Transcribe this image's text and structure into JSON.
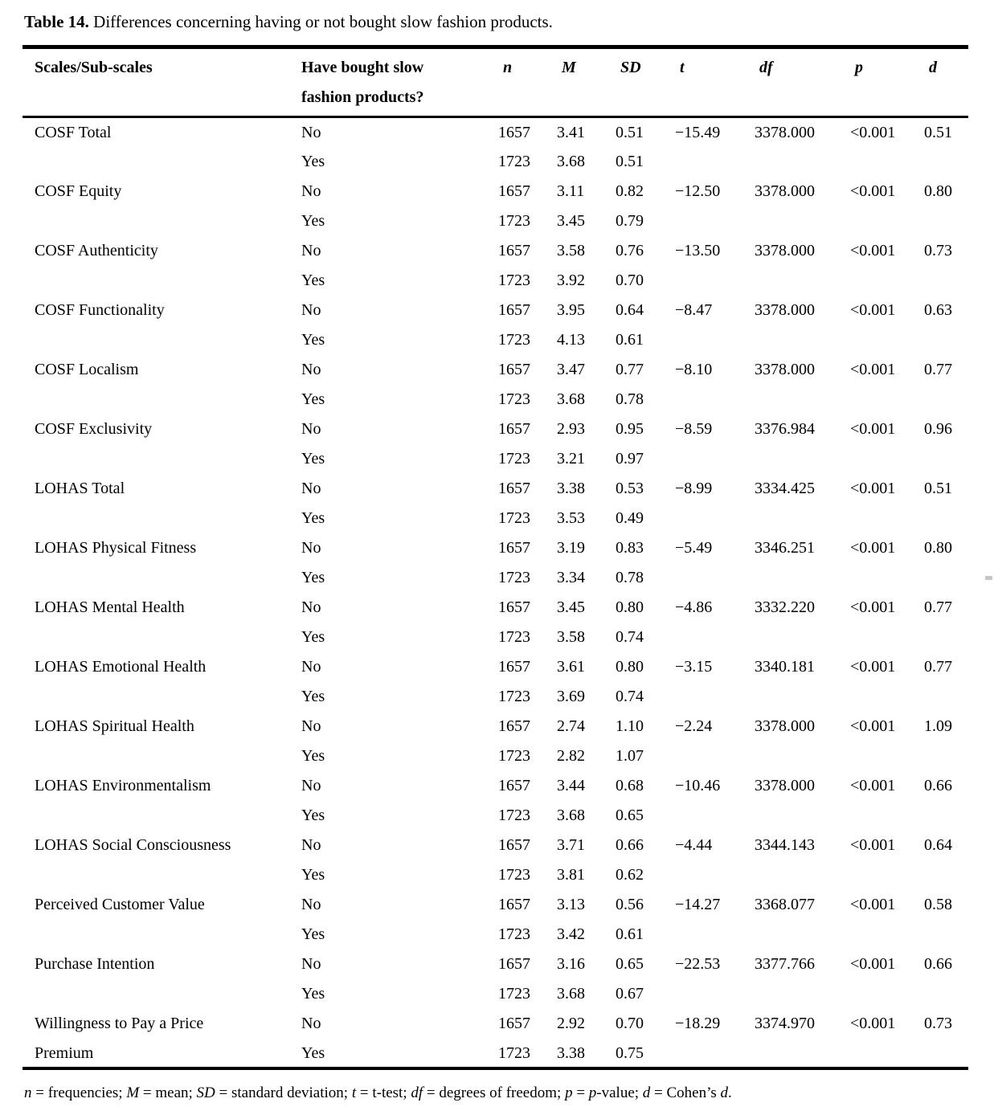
{
  "meta": {
    "background_color": "#ffffff",
    "text_color": "#000000",
    "rule_color": "#000000",
    "artifact_dash_color": "#c6c6c6"
  },
  "title": {
    "label": "Table 14.",
    "text": " Differences concerning having or not bought slow fashion products."
  },
  "table": {
    "header": {
      "scales": "Scales/Sub-scales",
      "bought_line1": "Have bought slow",
      "bought_line2": "fashion products?",
      "n": "n",
      "M": "M",
      "SD": "SD",
      "t": "t",
      "df": "df",
      "p": "p",
      "d": "d"
    },
    "rows": [
      [
        "COSF Total",
        "No",
        "1657",
        "3.41",
        "0.51",
        "−15.49",
        "3378.000",
        "<0.001",
        "0.51"
      ],
      [
        "",
        "Yes",
        "1723",
        "3.68",
        "0.51",
        "",
        "",
        "",
        ""
      ],
      [
        "COSF Equity",
        "No",
        "1657",
        "3.11",
        "0.82",
        "−12.50",
        "3378.000",
        "<0.001",
        "0.80"
      ],
      [
        "",
        "Yes",
        "1723",
        "3.45",
        "0.79",
        "",
        "",
        "",
        ""
      ],
      [
        "COSF Authenticity",
        "No",
        "1657",
        "3.58",
        "0.76",
        "−13.50",
        "3378.000",
        "<0.001",
        "0.73"
      ],
      [
        "",
        "Yes",
        "1723",
        "3.92",
        "0.70",
        "",
        "",
        "",
        ""
      ],
      [
        "COSF Functionality",
        "No",
        "1657",
        "3.95",
        "0.64",
        "−8.47",
        "3378.000",
        "<0.001",
        "0.63"
      ],
      [
        "",
        "Yes",
        "1723",
        "4.13",
        "0.61",
        "",
        "",
        "",
        ""
      ],
      [
        "COSF Localism",
        "No",
        "1657",
        "3.47",
        "0.77",
        "−8.10",
        "3378.000",
        "<0.001",
        "0.77"
      ],
      [
        "",
        "Yes",
        "1723",
        "3.68",
        "0.78",
        "",
        "",
        "",
        ""
      ],
      [
        "COSF Exclusivity",
        "No",
        "1657",
        "2.93",
        "0.95",
        "−8.59",
        "3376.984",
        "<0.001",
        "0.96"
      ],
      [
        "",
        "Yes",
        "1723",
        "3.21",
        "0.97",
        "",
        "",
        "",
        ""
      ],
      [
        "LOHAS Total",
        "No",
        "1657",
        "3.38",
        "0.53",
        "−8.99",
        "3334.425",
        "<0.001",
        "0.51"
      ],
      [
        "",
        "Yes",
        "1723",
        "3.53",
        "0.49",
        "",
        "",
        "",
        ""
      ],
      [
        "LOHAS Physical Fitness",
        "No",
        "1657",
        "3.19",
        "0.83",
        "−5.49",
        "3346.251",
        "<0.001",
        "0.80"
      ],
      [
        "",
        "Yes",
        "1723",
        "3.34",
        "0.78",
        "",
        "",
        "",
        ""
      ],
      [
        "LOHAS Mental Health",
        "No",
        "1657",
        "3.45",
        "0.80",
        "−4.86",
        "3332.220",
        "<0.001",
        "0.77"
      ],
      [
        "",
        "Yes",
        "1723",
        "3.58",
        "0.74",
        "",
        "",
        "",
        ""
      ],
      [
        "LOHAS Emotional Health",
        "No",
        "1657",
        "3.61",
        "0.80",
        "−3.15",
        "3340.181",
        "<0.001",
        "0.77"
      ],
      [
        "",
        "Yes",
        "1723",
        "3.69",
        "0.74",
        "",
        "",
        "",
        ""
      ],
      [
        "LOHAS Spiritual Health",
        "No",
        "1657",
        "2.74",
        "1.10",
        "−2.24",
        "3378.000",
        "<0.001",
        "1.09"
      ],
      [
        "",
        "Yes",
        "1723",
        "2.82",
        "1.07",
        "",
        "",
        "",
        ""
      ],
      [
        "LOHAS Environmentalism",
        "No",
        "1657",
        "3.44",
        "0.68",
        "−10.46",
        "3378.000",
        "<0.001",
        "0.66"
      ],
      [
        "",
        "Yes",
        "1723",
        "3.68",
        "0.65",
        "",
        "",
        "",
        ""
      ],
      [
        "LOHAS Social Consciousness",
        "No",
        "1657",
        "3.71",
        "0.66",
        "−4.44",
        "3344.143",
        "<0.001",
        "0.64"
      ],
      [
        "",
        "Yes",
        "1723",
        "3.81",
        "0.62",
        "",
        "",
        "",
        ""
      ],
      [
        "Perceived Customer Value",
        "No",
        "1657",
        "3.13",
        "0.56",
        "−14.27",
        "3368.077",
        "<0.001",
        "0.58"
      ],
      [
        "",
        "Yes",
        "1723",
        "3.42",
        "0.61",
        "",
        "",
        "",
        ""
      ],
      [
        "Purchase Intention",
        "No",
        "1657",
        "3.16",
        "0.65",
        "−22.53",
        "3377.766",
        "<0.001",
        "0.66"
      ],
      [
        "",
        "Yes",
        "1723",
        "3.68",
        "0.67",
        "",
        "",
        "",
        ""
      ],
      [
        "Willingness to Pay a Price",
        "No",
        "1657",
        "2.92",
        "0.70",
        "−18.29",
        "3374.970",
        "<0.001",
        "0.73"
      ],
      [
        "Premium",
        "Yes",
        "1723",
        "3.38",
        "0.75",
        "",
        "",
        "",
        ""
      ]
    ]
  },
  "footnote": {
    "segments": [
      {
        "text": "n",
        "italic": true
      },
      {
        "text": " = frequencies; ",
        "italic": false
      },
      {
        "text": "M",
        "italic": true
      },
      {
        "text": " = mean; ",
        "italic": false
      },
      {
        "text": "SD",
        "italic": true
      },
      {
        "text": " = standard deviation; ",
        "italic": false
      },
      {
        "text": "t",
        "italic": true
      },
      {
        "text": " = t-test; ",
        "italic": false
      },
      {
        "text": "df",
        "italic": true
      },
      {
        "text": " = degrees of freedom; ",
        "italic": false
      },
      {
        "text": "p",
        "italic": true
      },
      {
        "text": " = ",
        "italic": false
      },
      {
        "text": "p",
        "italic": true
      },
      {
        "text": "-value; ",
        "italic": false
      },
      {
        "text": "d",
        "italic": true
      },
      {
        "text": " = Cohen’s ",
        "italic": false
      },
      {
        "text": "d",
        "italic": true
      },
      {
        "text": ".",
        "italic": false
      }
    ]
  }
}
